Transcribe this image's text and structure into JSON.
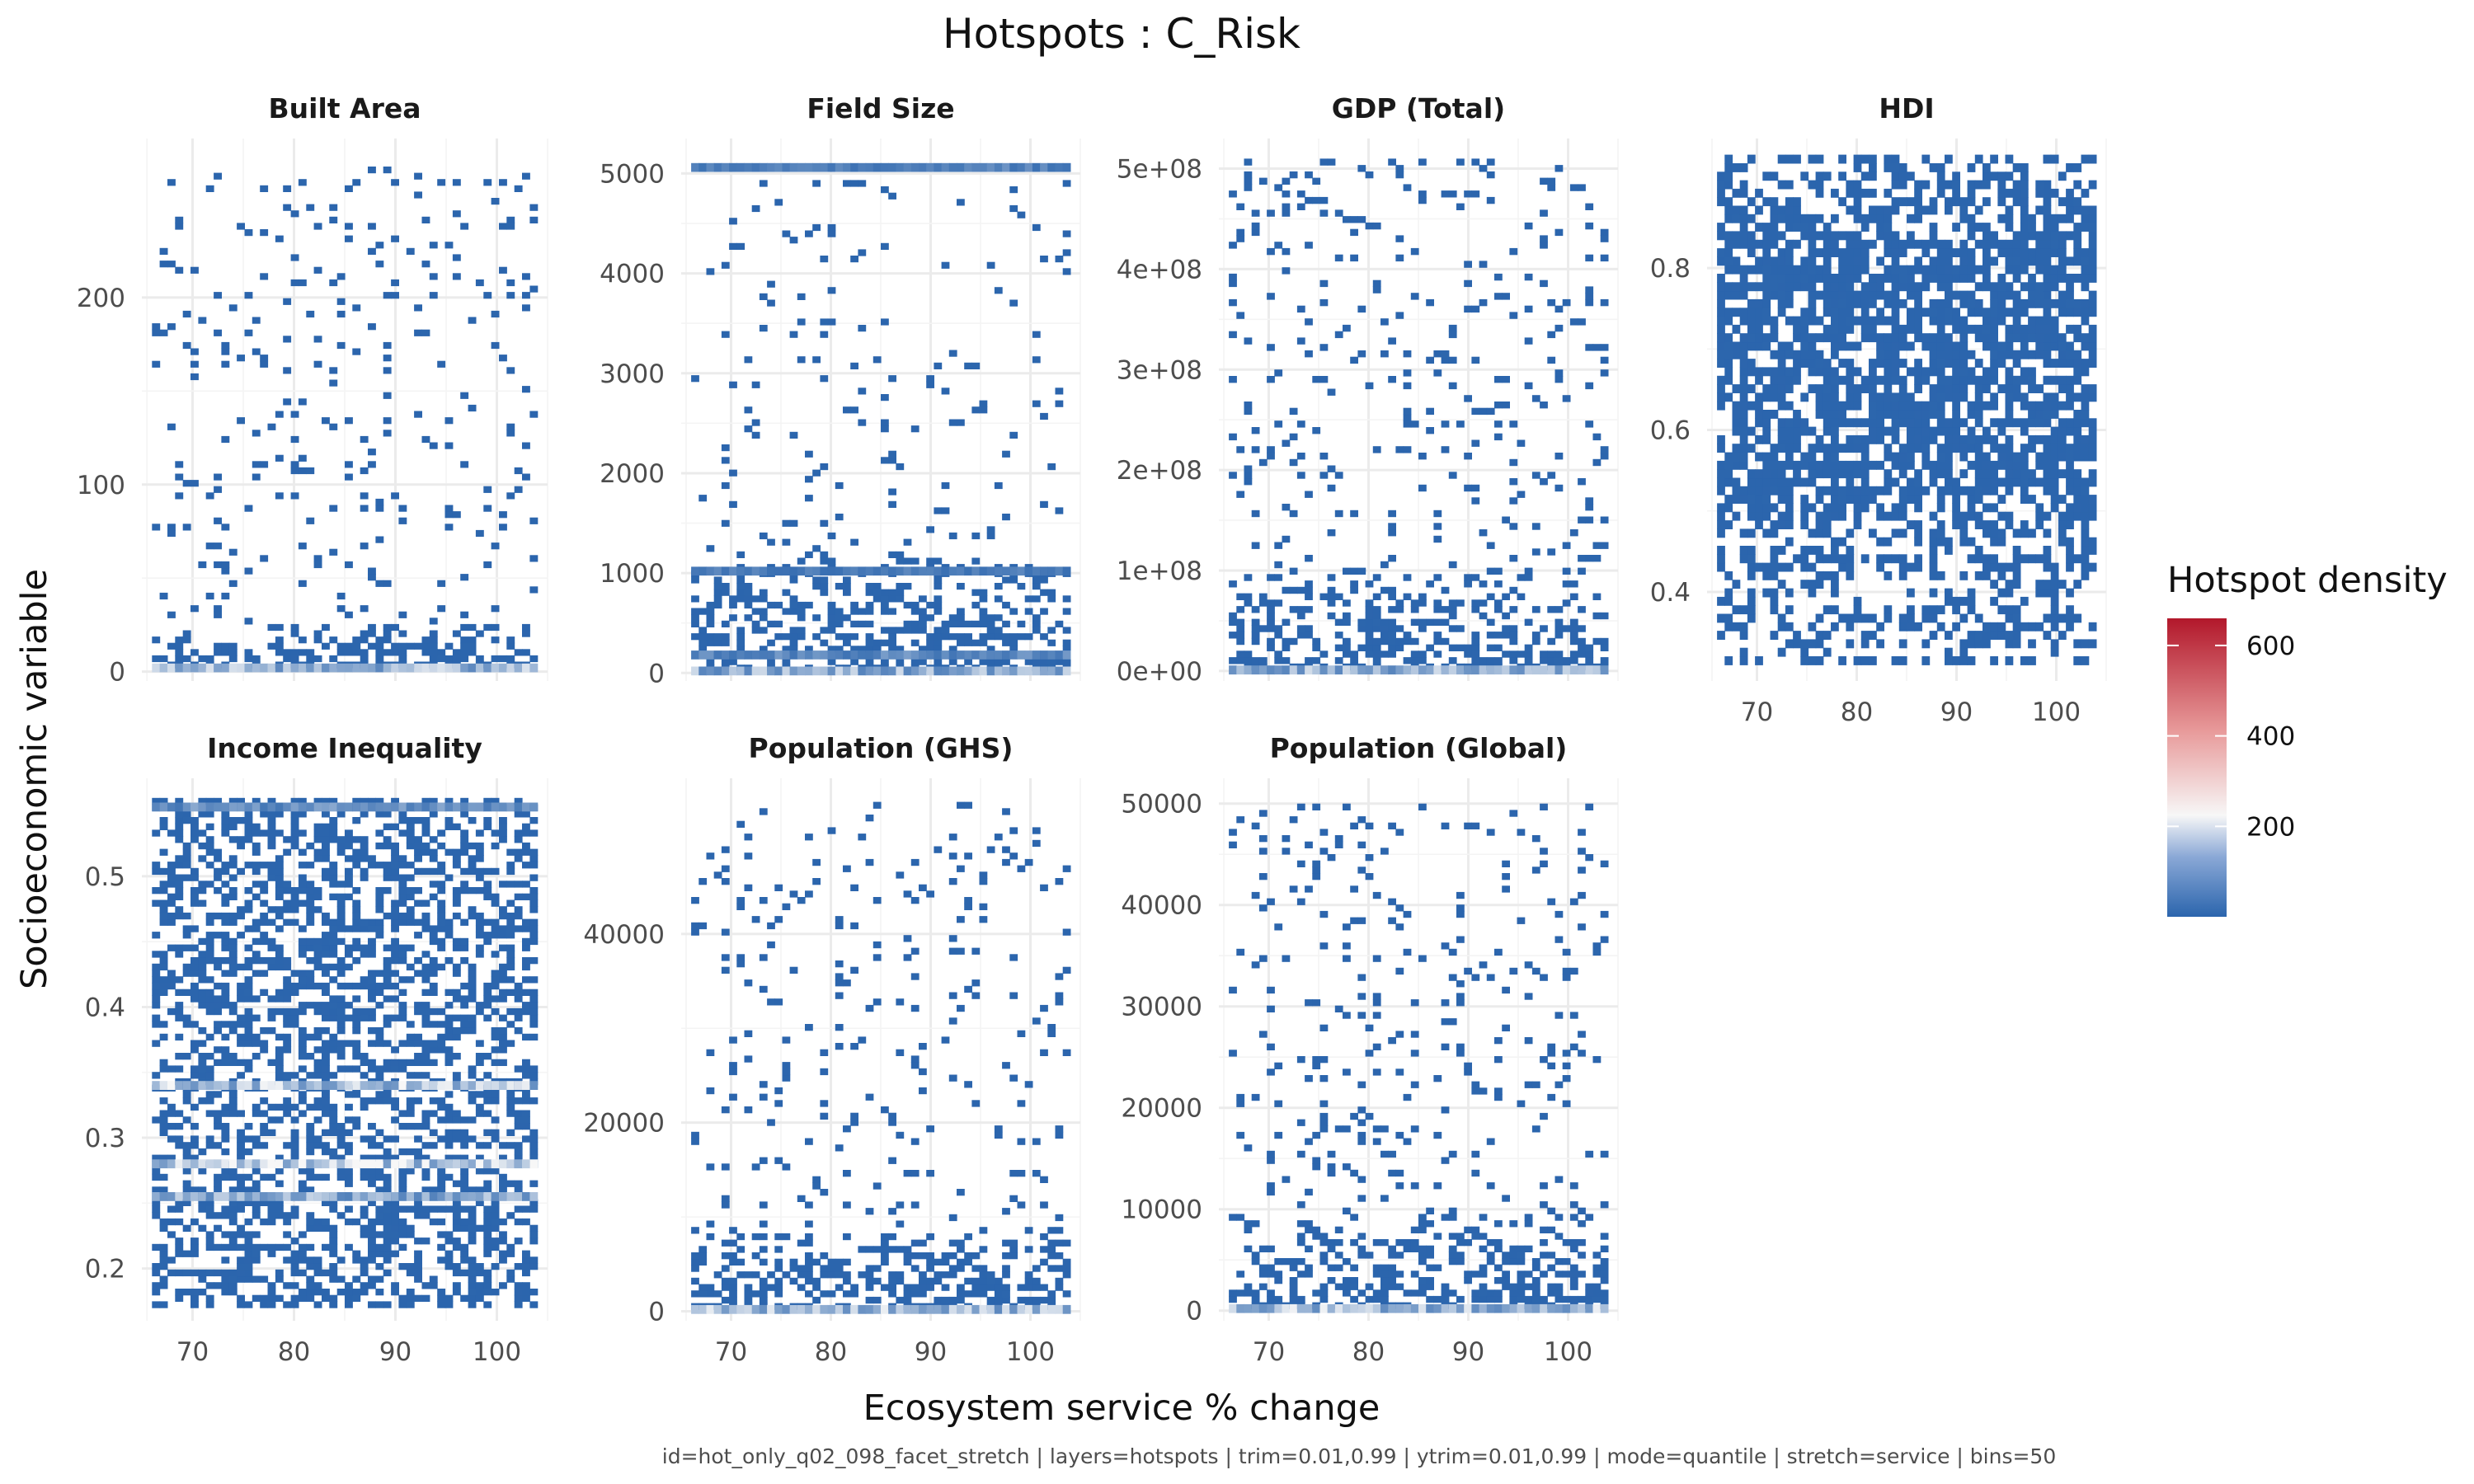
{
  "title": "Hotspots : C_Risk",
  "caption": "id=hot_only_q02_098_facet_stretch | layers=hotspots | trim=0.01,0.99 | ytrim=0.01,0.99 | mode=quantile | stretch=service | bins=50",
  "chart_data": {
    "type": "heatmap",
    "title": "Hotspots : C_Risk",
    "xlabel": "Ecosystem service % change",
    "ylabel": "Socioeconomic variable",
    "xlim": [
      65,
      105
    ],
    "x_ticks": [
      70,
      80,
      90,
      100
    ],
    "x_tick_labels": [
      "70",
      "80",
      "90",
      "100"
    ],
    "bins": 50,
    "grid": true,
    "legend": {
      "title": "Hotspot density",
      "position": "right",
      "ticks": [
        200,
        400,
        600
      ],
      "tick_labels": [
        "200",
        "400",
        "600"
      ],
      "range": [
        0,
        660
      ],
      "colors": {
        "low": "#2b65ad",
        "mid": "#f7f7f7",
        "high": "#b2182b"
      }
    },
    "panels": [
      {
        "name": "Built Area",
        "ylim": [
          -5,
          285
        ],
        "y_ticks": [
          0,
          100,
          200
        ],
        "y_tick_labels": [
          "0",
          "100",
          "200"
        ],
        "value_range": [
          2,
          270
        ],
        "baseline": 2,
        "base_density": 130,
        "dense_top": 25,
        "sparse_density": 0.07,
        "hdi": false,
        "bands": []
      },
      {
        "name": "Field Size",
        "ylim": [
          -80,
          5350
        ],
        "y_ticks": [
          0,
          1000,
          2000,
          3000,
          4000,
          5000
        ],
        "y_tick_labels": [
          "0",
          "1000",
          "2000",
          "3000",
          "4000",
          "5000"
        ],
        "value_range": [
          20,
          5060
        ],
        "baseline": 20,
        "base_density": 125,
        "dense_top": 1100,
        "sparse_density": 0.045,
        "hdi": false,
        "bands": [
          {
            "y": 5060,
            "density": 70
          },
          {
            "y": 1020,
            "density": 60
          },
          {
            "y": 180,
            "density": 80
          }
        ]
      },
      {
        "name": "GDP (Total)",
        "ylim": [
          -10000000,
          530000000
        ],
        "y_ticks": [
          0,
          100000000,
          200000000,
          300000000,
          400000000,
          500000000
        ],
        "y_tick_labels": [
          "0e+00",
          "1e+08",
          "2e+08",
          "3e+08",
          "4e+08",
          "5e+08"
        ],
        "value_range": [
          1000000,
          510000000
        ],
        "baseline": 1000000,
        "base_density": 130,
        "dense_top": 100000000,
        "sparse_density": 0.08,
        "hdi": false,
        "bands": []
      },
      {
        "name": "HDI",
        "ylim": [
          0.29,
          0.96
        ],
        "y_ticks": [
          0.4,
          0.6,
          0.8
        ],
        "y_tick_labels": [
          "0.4",
          "0.6",
          "0.8"
        ],
        "value_range": [
          0.31,
          0.94
        ],
        "baseline": null,
        "base_density": 0,
        "dense_top": 0.94,
        "sparse_density": 0.6,
        "hdi": true,
        "bands": []
      },
      {
        "name": "Income Inequality",
        "ylim": [
          0.16,
          0.575
        ],
        "y_ticks": [
          0.2,
          0.3,
          0.4,
          0.5
        ],
        "y_tick_labels": [
          "0.2",
          "0.3",
          "0.4",
          "0.5"
        ],
        "value_range": [
          0.17,
          0.56
        ],
        "baseline": null,
        "base_density": 0,
        "dense_top": 0.56,
        "sparse_density": 0.55,
        "hdi": false,
        "bands": [
          {
            "y": 0.553,
            "density": 90
          },
          {
            "y": 0.34,
            "density": 150
          },
          {
            "y": 0.28,
            "density": 170
          },
          {
            "y": 0.255,
            "density": 120
          }
        ]
      },
      {
        "name": "Population (GHS)",
        "ylim": [
          -1000,
          56500
        ],
        "y_ticks": [
          0,
          20000,
          40000
        ],
        "y_tick_labels": [
          "0",
          "20000",
          "40000"
        ],
        "value_range": [
          200,
          54000
        ],
        "baseline": 200,
        "base_density": 140,
        "dense_top": 8000,
        "sparse_density": 0.07,
        "hdi": false,
        "bands": []
      },
      {
        "name": "Population (Global)",
        "ylim": [
          -1000,
          52500
        ],
        "y_ticks": [
          0,
          10000,
          20000,
          30000,
          40000,
          50000
        ],
        "y_tick_labels": [
          "0",
          "10000",
          "20000",
          "30000",
          "40000",
          "50000"
        ],
        "value_range": [
          200,
          50000
        ],
        "baseline": 200,
        "base_density": 140,
        "dense_top": 9000,
        "sparse_density": 0.08,
        "hdi": false,
        "bands": []
      }
    ]
  }
}
